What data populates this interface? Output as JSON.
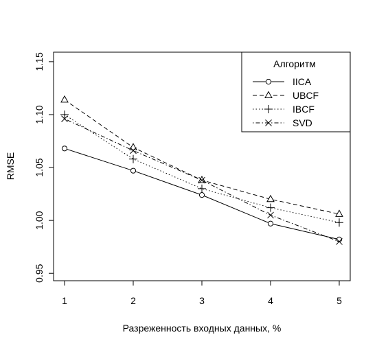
{
  "chart_data": {
    "type": "line",
    "title": "",
    "xlabel": "Разреженность входных данных, %",
    "ylabel": "RMSE",
    "x": [
      1,
      2,
      3,
      4,
      5
    ],
    "x_ticks": [
      "1",
      "2",
      "3",
      "4",
      "5"
    ],
    "y_ticks": [
      "0.95",
      "1.00",
      "1.05",
      "1.10",
      "1.15"
    ],
    "xlim": [
      0.84,
      5.16
    ],
    "ylim": [
      0.943,
      1.159
    ],
    "grid": false,
    "legend": {
      "title": "Алгоритм",
      "position": "top-right"
    },
    "series": [
      {
        "name": "IICA",
        "values": [
          1.068,
          1.047,
          1.024,
          0.997,
          0.982
        ],
        "line_style": "solid",
        "marker": "circle"
      },
      {
        "name": "UBCF",
        "values": [
          1.114,
          1.069,
          1.038,
          1.02,
          1.006
        ],
        "line_style": "dashed",
        "marker": "triangle"
      },
      {
        "name": "IBCF",
        "values": [
          1.1,
          1.058,
          1.03,
          1.012,
          0.998
        ],
        "line_style": "dotted",
        "marker": "plus"
      },
      {
        "name": "SVD",
        "values": [
          1.096,
          1.066,
          1.038,
          1.005,
          0.98
        ],
        "line_style": "dashdot",
        "marker": "cross"
      }
    ]
  }
}
